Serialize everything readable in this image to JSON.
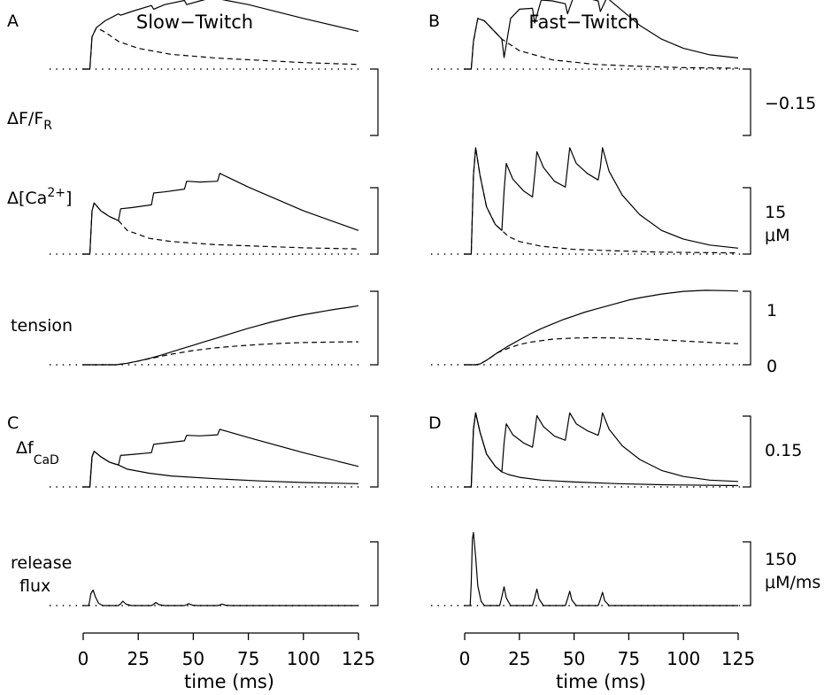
{
  "figure": {
    "panel_letters": [
      "A",
      "B",
      "C",
      "D"
    ],
    "column_titles": [
      "Slow−Twitch",
      "Fast−Twitch"
    ],
    "row_labels": {
      "dF": "ΔF/F",
      "dF_sub": "R",
      "ca": "Δ[Ca",
      "ca_sup": "2+",
      "ca_end": "]",
      "tension": "tension",
      "fcad": "Δf",
      "fcad_sub": "CaD",
      "release_1": "release",
      "release_2": "flux"
    },
    "scale_labels": {
      "dF": "−0.15",
      "ca_value": "15",
      "ca_unit": "μM",
      "tension_top": "1",
      "tension_bottom": "0",
      "fcad": "0.15",
      "flux_value": "150",
      "flux_unit": "μM/ms"
    },
    "x_axis": {
      "title": "time (ms)",
      "ticks": [
        "0",
        "25",
        "50",
        "75",
        "100",
        "125"
      ]
    }
  },
  "chart_data": [
    {
      "panel": "A",
      "column": "Slow−Twitch",
      "type": "line",
      "ylabel": "ΔF/F_R",
      "scale_bar": "−0.15",
      "xlim": [
        0,
        125
      ],
      "series": [
        {
          "style": "solid",
          "x": [
            0,
            2,
            3,
            4,
            6,
            10,
            16,
            17,
            22,
            31,
            32,
            37,
            46,
            47,
            53,
            61,
            62,
            75,
            100,
            125
          ],
          "y": [
            0,
            0,
            0,
            -0.07,
            -0.09,
            -0.105,
            -0.12,
            -0.117,
            -0.125,
            -0.138,
            -0.13,
            -0.14,
            -0.149,
            -0.14,
            -0.148,
            -0.158,
            -0.152,
            -0.14,
            -0.11,
            -0.082
          ]
        },
        {
          "style": "dashed",
          "x": [
            0,
            2,
            3,
            4,
            6,
            10,
            16,
            25,
            40,
            60,
            80,
            100,
            125
          ],
          "y": [
            0,
            0,
            0,
            -0.07,
            -0.09,
            -0.08,
            -0.06,
            -0.045,
            -0.032,
            -0.024,
            -0.019,
            -0.014,
            -0.01
          ]
        }
      ]
    },
    {
      "panel": "B",
      "column": "Fast−Twitch",
      "type": "line",
      "ylabel": "ΔF/F_R",
      "scale_bar": "−0.15",
      "xlim": [
        0,
        125
      ],
      "series": [
        {
          "style": "solid",
          "x": [
            0,
            2,
            3,
            4,
            6,
            9,
            13,
            17,
            18,
            21,
            25,
            31,
            32,
            35,
            40,
            46,
            47,
            50,
            55,
            61,
            62,
            65,
            70,
            80,
            90,
            100,
            112,
            125
          ],
          "y": [
            0,
            0,
            0,
            -0.06,
            -0.11,
            -0.105,
            -0.085,
            -0.065,
            -0.025,
            -0.11,
            -0.13,
            -0.132,
            -0.1,
            -0.15,
            -0.148,
            -0.142,
            -0.12,
            -0.16,
            -0.155,
            -0.148,
            -0.125,
            -0.155,
            -0.135,
            -0.095,
            -0.065,
            -0.045,
            -0.031,
            -0.024
          ]
        },
        {
          "style": "dashed",
          "x": [
            0,
            2,
            3,
            4,
            6,
            9,
            13,
            17,
            25,
            40,
            60,
            80,
            100,
            125
          ],
          "y": [
            0,
            0,
            0,
            -0.06,
            -0.11,
            -0.105,
            -0.085,
            -0.065,
            -0.04,
            -0.02,
            -0.01,
            -0.006,
            -0.003,
            -0.002
          ]
        }
      ]
    },
    {
      "panel": "A",
      "column": "Slow−Twitch",
      "type": "line",
      "ylabel": "Δ[Ca2+]",
      "scale_bar": "15 μM",
      "xlim": [
        0,
        125
      ],
      "series": [
        {
          "style": "solid",
          "x": [
            0,
            2,
            3,
            4,
            5,
            8,
            12,
            16,
            17,
            22,
            31,
            32,
            37,
            46,
            47,
            53,
            61,
            62,
            75,
            100,
            125
          ],
          "y": [
            0,
            0,
            0,
            11,
            13,
            11,
            9.5,
            8.5,
            11.5,
            11.8,
            12.5,
            15.5,
            15.8,
            16.5,
            18.5,
            18.3,
            18.5,
            20.5,
            17,
            11,
            6
          ]
        },
        {
          "style": "dashed",
          "x": [
            0,
            2,
            3,
            4,
            5,
            8,
            12,
            16,
            20,
            30,
            40,
            60,
            80,
            100,
            125
          ],
          "y": [
            0,
            0,
            0,
            11,
            13,
            11,
            9.5,
            8.5,
            6,
            4,
            3.2,
            2.4,
            2,
            1.6,
            1.3
          ]
        }
      ]
    },
    {
      "panel": "B",
      "column": "Fast−Twitch",
      "type": "line",
      "ylabel": "Δ[Ca2+]",
      "scale_bar": "15 μM",
      "xlim": [
        0,
        125
      ],
      "series": [
        {
          "style": "solid",
          "x": [
            0,
            2,
            3,
            4,
            5,
            7,
            10,
            14,
            17,
            18,
            19,
            22,
            27,
            31,
            32,
            33,
            36,
            41,
            46,
            47,
            48,
            51,
            56,
            61,
            62,
            63,
            66,
            72,
            80,
            90,
            100,
            112,
            125
          ],
          "y": [
            0,
            0,
            0,
            20,
            27,
            20,
            12,
            7.5,
            6,
            16,
            23,
            19,
            16,
            14.5,
            20,
            26,
            22,
            18.5,
            17,
            22,
            27,
            23,
            20.5,
            18.8,
            22,
            27,
            21,
            15,
            10,
            6,
            3.8,
            2.3,
            1.5
          ]
        },
        {
          "style": "dashed",
          "x": [
            0,
            2,
            3,
            4,
            5,
            7,
            10,
            14,
            17,
            20,
            25,
            35,
            50,
            70,
            90,
            125
          ],
          "y": [
            0,
            0,
            0,
            20,
            27,
            20,
            12,
            7.5,
            6,
            4.5,
            3.2,
            2,
            1.2,
            0.8,
            0.5,
            0.3
          ]
        }
      ]
    },
    {
      "panel": "A",
      "column": "Slow−Twitch",
      "type": "line",
      "ylabel": "tension",
      "scale_bar": "0 to 1",
      "xlim": [
        0,
        125
      ],
      "ylim": [
        0,
        1
      ],
      "series": [
        {
          "style": "solid",
          "x": [
            0,
            5,
            10,
            15,
            20,
            25,
            30,
            35,
            40,
            45,
            50,
            55,
            60,
            65,
            70,
            75,
            80,
            85,
            90,
            95,
            100,
            105,
            110,
            115,
            120,
            125
          ],
          "y": [
            0,
            0,
            0,
            0,
            0.02,
            0.05,
            0.085,
            0.125,
            0.17,
            0.215,
            0.26,
            0.305,
            0.35,
            0.395,
            0.44,
            0.485,
            0.525,
            0.565,
            0.6,
            0.635,
            0.665,
            0.69,
            0.715,
            0.74,
            0.76,
            0.785
          ]
        },
        {
          "style": "dashed",
          "x": [
            0,
            5,
            10,
            15,
            20,
            25,
            30,
            35,
            40,
            45,
            50,
            60,
            70,
            80,
            90,
            100,
            110,
            120,
            125
          ],
          "y": [
            0,
            0,
            0,
            0,
            0.02,
            0.05,
            0.08,
            0.11,
            0.14,
            0.165,
            0.19,
            0.225,
            0.25,
            0.27,
            0.285,
            0.295,
            0.3,
            0.305,
            0.305
          ]
        }
      ]
    },
    {
      "panel": "B",
      "column": "Fast−Twitch",
      "type": "line",
      "ylabel": "tension",
      "scale_bar": "0 to 1",
      "xlim": [
        0,
        125
      ],
      "ylim": [
        0,
        1
      ],
      "series": [
        {
          "style": "solid",
          "x": [
            0,
            5,
            7,
            10,
            15,
            20,
            25,
            30,
            35,
            40,
            45,
            50,
            55,
            60,
            65,
            70,
            75,
            80,
            90,
            100,
            110,
            120,
            125
          ],
          "y": [
            0,
            0,
            0.01,
            0.06,
            0.16,
            0.25,
            0.33,
            0.41,
            0.48,
            0.54,
            0.6,
            0.65,
            0.7,
            0.74,
            0.78,
            0.82,
            0.86,
            0.89,
            0.94,
            0.975,
            0.99,
            0.985,
            0.98
          ]
        },
        {
          "style": "dashed",
          "x": [
            0,
            5,
            7,
            10,
            15,
            20,
            25,
            30,
            40,
            50,
            60,
            70,
            80,
            90,
            100,
            110,
            120,
            125
          ],
          "y": [
            0,
            0,
            0.01,
            0.06,
            0.16,
            0.22,
            0.27,
            0.3,
            0.34,
            0.355,
            0.36,
            0.355,
            0.345,
            0.33,
            0.315,
            0.3,
            0.285,
            0.28
          ]
        }
      ]
    },
    {
      "panel": "C",
      "column": "Slow−Twitch",
      "type": "line",
      "ylabel": "Δf_CaD",
      "scale_bar": "0.15",
      "xlim": [
        0,
        125
      ],
      "series": [
        {
          "style": "solid",
          "x": [
            0,
            2,
            3,
            4,
            5,
            8,
            12,
            16,
            17,
            22,
            31,
            32,
            37,
            46,
            47,
            53,
            61,
            62,
            75,
            100,
            125
          ],
          "y": [
            0,
            0,
            0,
            0.11,
            0.13,
            0.11,
            0.09,
            0.08,
            0.115,
            0.118,
            0.125,
            0.155,
            0.16,
            0.168,
            0.188,
            0.186,
            0.19,
            0.21,
            0.18,
            0.125,
            0.075
          ]
        },
        {
          "style": "solid",
          "x": [
            0,
            2,
            3,
            4,
            5,
            8,
            12,
            16,
            20,
            30,
            40,
            60,
            80,
            100,
            125
          ],
          "y": [
            0,
            0,
            0,
            0.11,
            0.13,
            0.11,
            0.09,
            0.08,
            0.065,
            0.05,
            0.04,
            0.03,
            0.022,
            0.016,
            0.012
          ]
        }
      ]
    },
    {
      "panel": "D",
      "column": "Fast−Twitch",
      "type": "line",
      "ylabel": "Δf_CaD",
      "scale_bar": "0.15",
      "xlim": [
        0,
        125
      ],
      "series": [
        {
          "style": "solid",
          "x": [
            0,
            2,
            3,
            4,
            5,
            7,
            10,
            14,
            17,
            18,
            19,
            22,
            27,
            31,
            32,
            33,
            36,
            41,
            46,
            47,
            48,
            51,
            56,
            61,
            62,
            63,
            66,
            72,
            80,
            90,
            100,
            112,
            125
          ],
          "y": [
            0,
            0,
            0,
            0.21,
            0.27,
            0.2,
            0.12,
            0.075,
            0.055,
            0.16,
            0.23,
            0.19,
            0.16,
            0.145,
            0.2,
            0.26,
            0.22,
            0.185,
            0.17,
            0.22,
            0.27,
            0.23,
            0.205,
            0.188,
            0.22,
            0.27,
            0.21,
            0.15,
            0.1,
            0.06,
            0.038,
            0.025,
            0.02
          ]
        },
        {
          "style": "solid",
          "x": [
            0,
            2,
            3,
            4,
            5,
            7,
            10,
            14,
            17,
            20,
            25,
            35,
            50,
            70,
            90,
            125
          ],
          "y": [
            0,
            0,
            0,
            0.21,
            0.27,
            0.2,
            0.12,
            0.075,
            0.055,
            0.045,
            0.035,
            0.025,
            0.018,
            0.012,
            0.008,
            0.005
          ]
        }
      ]
    },
    {
      "panel": "C",
      "column": "Slow−Twitch",
      "type": "line",
      "ylabel": "release flux",
      "scale_bar": "150 μM/ms",
      "xlim": [
        0,
        125
      ],
      "series": [
        {
          "style": "solid",
          "x": [
            0,
            2.5,
            3,
            3.5,
            4.5,
            5.5,
            7,
            9,
            16,
            17,
            18,
            19.5,
            22,
            31,
            32,
            33,
            34.5,
            37,
            46,
            47,
            48,
            49.5,
            52,
            61,
            62,
            63,
            64.5,
            67,
            125
          ],
          "y": [
            0,
            0,
            25,
            55,
            70,
            40,
            10,
            0,
            0,
            8,
            20,
            6,
            0,
            0,
            6,
            14,
            4,
            0,
            0,
            4,
            9,
            2,
            0,
            0,
            3,
            7,
            2,
            0,
            0
          ]
        }
      ]
    },
    {
      "panel": "D",
      "column": "Fast−Twitch",
      "type": "line",
      "ylabel": "release flux",
      "scale_bar": "150 μM/ms",
      "xlim": [
        0,
        125
      ],
      "series": [
        {
          "style": "solid",
          "x": [
            0,
            2.5,
            3,
            3.5,
            4,
            5,
            6,
            7.5,
            9,
            16,
            17,
            18,
            19,
            21,
            31,
            32,
            33,
            34,
            36,
            46,
            47,
            48,
            49,
            51,
            61,
            62,
            63,
            64,
            66,
            125
          ],
          "y": [
            0,
            0,
            100,
            300,
            330,
            220,
            90,
            20,
            0,
            0,
            40,
            85,
            35,
            0,
            0,
            35,
            75,
            30,
            0,
            0,
            30,
            65,
            25,
            0,
            0,
            28,
            60,
            22,
            0,
            0
          ]
        }
      ]
    }
  ]
}
